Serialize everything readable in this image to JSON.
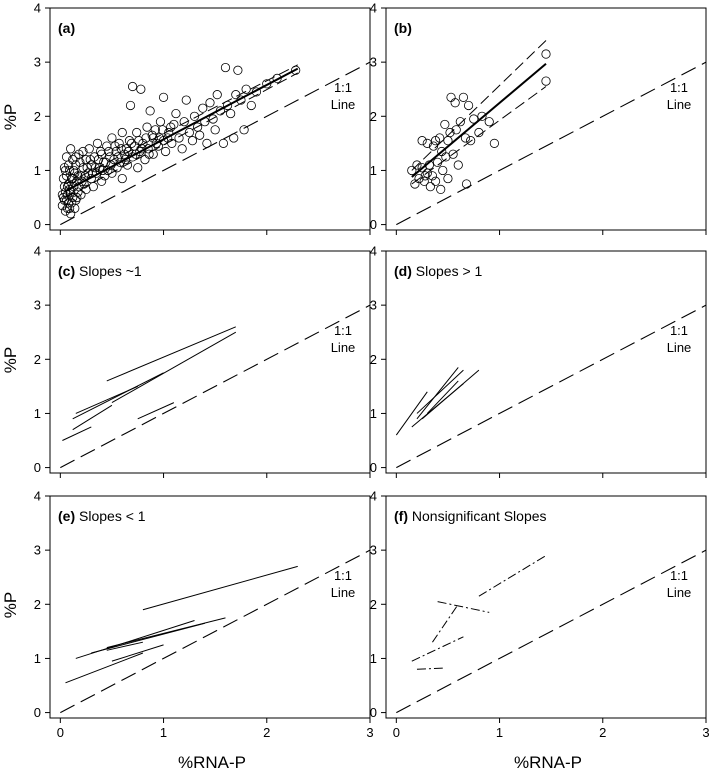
{
  "figure": {
    "ylabel": "%P",
    "xlabel": "%RNA-P",
    "ref_line_label_1": "1:1",
    "ref_line_label_2": "Line"
  },
  "chart_data": [
    {
      "type": "scatter",
      "panel": "a",
      "title": "(a)",
      "xlim": [
        -0.1,
        3
      ],
      "ylim": [
        -0.1,
        4
      ],
      "xticks": [
        0,
        1,
        2,
        3
      ],
      "yticks": [
        0,
        1,
        2,
        3,
        4
      ],
      "reference_line": {
        "x": [
          0,
          3
        ],
        "y": [
          0,
          3
        ]
      },
      "fit": {
        "x": [
          0.05,
          2.3
        ],
        "y": [
          0.62,
          2.88
        ]
      },
      "ci_upper": {
        "x": [
          0.05,
          2.3
        ],
        "y": [
          0.75,
          2.95
        ]
      },
      "ci_lower": {
        "x": [
          0.05,
          2.3
        ],
        "y": [
          0.5,
          2.8
        ]
      },
      "points": [
        [
          0.02,
          0.35
        ],
        [
          0.03,
          0.5
        ],
        [
          0.04,
          0.7
        ],
        [
          0.05,
          0.25
        ],
        [
          0.05,
          0.6
        ],
        [
          0.06,
          0.45
        ],
        [
          0.06,
          0.9
        ],
        [
          0.07,
          0.55
        ],
        [
          0.07,
          0.3
        ],
        [
          0.08,
          0.75
        ],
        [
          0.08,
          0.4
        ],
        [
          0.09,
          1.0
        ],
        [
          0.1,
          0.6
        ],
        [
          0.1,
          0.2
        ],
        [
          0.11,
          0.85
        ],
        [
          0.12,
          0.5
        ],
        [
          0.12,
          1.2
        ],
        [
          0.13,
          0.7
        ],
        [
          0.14,
          0.95
        ],
        [
          0.15,
          0.45
        ],
        [
          0.15,
          1.1
        ],
        [
          0.16,
          0.8
        ],
        [
          0.17,
          0.6
        ],
        [
          0.18,
          1.3
        ],
        [
          0.2,
          0.9
        ],
        [
          0.2,
          0.55
        ],
        [
          0.22,
          1.05
        ],
        [
          0.23,
          0.75
        ],
        [
          0.25,
          1.2
        ],
        [
          0.25,
          0.65
        ],
        [
          0.27,
          0.95
        ],
        [
          0.28,
          1.4
        ],
        [
          0.3,
          0.85
        ],
        [
          0.3,
          1.1
        ],
        [
          0.32,
          0.7
        ],
        [
          0.33,
          1.25
        ],
        [
          0.35,
          0.95
        ],
        [
          0.36,
          1.5
        ],
        [
          0.38,
          1.05
        ],
        [
          0.4,
          0.8
        ],
        [
          0.4,
          1.3
        ],
        [
          0.42,
          1.15
        ],
        [
          0.43,
          0.9
        ],
        [
          0.45,
          1.45
        ],
        [
          0.46,
          1.0
        ],
        [
          0.48,
          1.25
        ],
        [
          0.5,
          1.6
        ],
        [
          0.5,
          0.95
        ],
        [
          0.52,
          1.2
        ],
        [
          0.54,
          1.35
        ],
        [
          0.55,
          1.05
        ],
        [
          0.57,
          1.5
        ],
        [
          0.58,
          1.15
        ],
        [
          0.6,
          1.7
        ],
        [
          0.6,
          0.85
        ],
        [
          0.62,
          1.3
        ],
        [
          0.64,
          1.4
        ],
        [
          0.65,
          1.1
        ],
        [
          0.67,
          1.55
        ],
        [
          0.68,
          2.2
        ],
        [
          0.7,
          1.25
        ],
        [
          0.7,
          2.55
        ],
        [
          0.72,
          1.45
        ],
        [
          0.74,
          1.7
        ],
        [
          0.75,
          1.05
        ],
        [
          0.77,
          1.35
        ],
        [
          0.78,
          2.5
        ],
        [
          0.8,
          1.5
        ],
        [
          0.82,
          1.2
        ],
        [
          0.84,
          1.8
        ],
        [
          0.85,
          1.4
        ],
        [
          0.87,
          2.1
        ],
        [
          0.9,
          1.6
        ],
        [
          0.9,
          1.3
        ],
        [
          0.92,
          1.75
        ],
        [
          0.95,
          1.45
        ],
        [
          0.97,
          1.9
        ],
        [
          1.0,
          1.55
        ],
        [
          1.0,
          2.35
        ],
        [
          1.02,
          1.35
        ],
        [
          1.05,
          1.7
        ],
        [
          1.08,
          1.5
        ],
        [
          1.1,
          1.85
        ],
        [
          1.12,
          2.05
        ],
        [
          1.15,
          1.6
        ],
        [
          1.18,
          1.4
        ],
        [
          1.2,
          1.9
        ],
        [
          1.22,
          2.3
        ],
        [
          1.25,
          1.7
        ],
        [
          1.28,
          1.55
        ],
        [
          1.3,
          2.0
        ],
        [
          1.33,
          1.8
        ],
        [
          1.35,
          1.65
        ],
        [
          1.38,
          2.15
        ],
        [
          1.4,
          1.9
        ],
        [
          1.42,
          1.5
        ],
        [
          1.45,
          2.25
        ],
        [
          1.48,
          1.95
        ],
        [
          1.5,
          1.75
        ],
        [
          1.52,
          2.4
        ],
        [
          1.55,
          2.1
        ],
        [
          1.58,
          1.5
        ],
        [
          1.6,
          2.9
        ],
        [
          1.62,
          2.2
        ],
        [
          1.65,
          2.05
        ],
        [
          1.68,
          1.6
        ],
        [
          1.7,
          2.4
        ],
        [
          1.72,
          2.85
        ],
        [
          1.75,
          2.3
        ],
        [
          1.78,
          1.75
        ],
        [
          1.8,
          2.5
        ],
        [
          1.85,
          2.2
        ],
        [
          1.9,
          2.45
        ],
        [
          2.0,
          2.6
        ],
        [
          2.1,
          2.7
        ],
        [
          2.28,
          2.85
        ],
        [
          0.03,
          0.85
        ],
        [
          0.04,
          1.05
        ],
        [
          0.06,
          1.25
        ],
        [
          0.08,
          1.1
        ],
        [
          0.09,
          0.3
        ],
        [
          0.11,
          0.4
        ],
        [
          0.13,
          1.0
        ],
        [
          0.14,
          0.3
        ],
        [
          0.16,
          0.5
        ],
        [
          0.18,
          0.7
        ],
        [
          0.19,
          1.15
        ],
        [
          0.21,
          0.8
        ],
        [
          0.24,
          0.9
        ],
        [
          0.26,
          1.05
        ],
        [
          0.29,
          1.2
        ],
        [
          0.31,
          0.95
        ],
        [
          0.34,
          1.05
        ],
        [
          0.37,
          1.2
        ],
        [
          0.39,
          1.35
        ],
        [
          0.41,
          1.0
        ],
        [
          0.44,
          1.15
        ],
        [
          0.47,
          1.35
        ],
        [
          0.49,
          1.1
        ],
        [
          0.53,
          1.45
        ],
        [
          0.56,
          1.25
        ],
        [
          0.59,
          1.4
        ],
        [
          0.63,
          1.2
        ],
        [
          0.66,
          1.35
        ],
        [
          0.69,
          1.5
        ],
        [
          0.73,
          1.3
        ],
        [
          0.76,
          1.55
        ],
        [
          0.79,
          1.4
        ],
        [
          0.83,
          1.6
        ],
        [
          0.86,
          1.3
        ],
        [
          0.89,
          1.65
        ],
        [
          0.93,
          1.5
        ],
        [
          0.96,
          1.6
        ],
        [
          0.99,
          1.75
        ],
        [
          1.04,
          1.6
        ],
        [
          1.07,
          1.8
        ],
        [
          0.1,
          1.4
        ],
        [
          0.15,
          1.25
        ],
        [
          0.22,
          1.35
        ],
        [
          0.05,
          1.0
        ],
        [
          0.07,
          0.7
        ],
        [
          0.09,
          0.65
        ],
        [
          0.12,
          0.85
        ],
        [
          0.17,
          0.9
        ],
        [
          0.02,
          0.55
        ],
        [
          0.04,
          0.45
        ]
      ]
    },
    {
      "type": "scatter",
      "panel": "b",
      "title": "(b)",
      "xlim": [
        -0.1,
        3
      ],
      "ylim": [
        -0.1,
        4
      ],
      "xticks": [
        0,
        1,
        2,
        3
      ],
      "yticks": [
        0,
        1,
        2,
        3,
        4
      ],
      "reference_line": {
        "x": [
          0,
          3
        ],
        "y": [
          0,
          3
        ]
      },
      "fit": {
        "x": [
          0.15,
          1.45
        ],
        "y": [
          0.88,
          2.97
        ]
      },
      "ci_upper": {
        "x": [
          0.15,
          1.45
        ],
        "y": [
          1.0,
          3.4
        ]
      },
      "ci_lower": {
        "x": [
          0.15,
          1.45
        ],
        "y": [
          0.75,
          2.55
        ]
      },
      "points": [
        [
          0.15,
          1.0
        ],
        [
          0.18,
          0.75
        ],
        [
          0.2,
          1.1
        ],
        [
          0.22,
          0.85
        ],
        [
          0.25,
          1.05
        ],
        [
          0.25,
          1.55
        ],
        [
          0.27,
          0.8
        ],
        [
          0.3,
          0.95
        ],
        [
          0.3,
          1.5
        ],
        [
          0.32,
          1.1
        ],
        [
          0.33,
          0.7
        ],
        [
          0.35,
          0.9
        ],
        [
          0.36,
          1.45
        ],
        [
          0.38,
          0.8
        ],
        [
          0.4,
          1.15
        ],
        [
          0.42,
          1.6
        ],
        [
          0.43,
          0.65
        ],
        [
          0.45,
          1.0
        ],
        [
          0.47,
          1.85
        ],
        [
          0.48,
          1.25
        ],
        [
          0.5,
          1.55
        ],
        [
          0.5,
          0.85
        ],
        [
          0.52,
          1.7
        ],
        [
          0.53,
          2.35
        ],
        [
          0.55,
          1.3
        ],
        [
          0.57,
          2.25
        ],
        [
          0.58,
          1.75
        ],
        [
          0.6,
          1.1
        ],
        [
          0.62,
          1.9
        ],
        [
          0.65,
          2.35
        ],
        [
          0.67,
          1.6
        ],
        [
          0.68,
          0.75
        ],
        [
          0.7,
          2.2
        ],
        [
          0.72,
          1.55
        ],
        [
          0.75,
          1.95
        ],
        [
          0.8,
          1.7
        ],
        [
          0.83,
          2.0
        ],
        [
          0.9,
          1.9
        ],
        [
          0.95,
          1.5
        ],
        [
          1.45,
          3.15
        ],
        [
          1.45,
          2.65
        ],
        [
          0.44,
          1.35
        ],
        [
          0.38,
          1.55
        ],
        [
          0.28,
          0.9
        ]
      ]
    },
    {
      "type": "line",
      "panel": "c",
      "title": "(c) Slopes ~1",
      "xlim": [
        -0.1,
        3
      ],
      "ylim": [
        -0.1,
        4
      ],
      "xticks": [
        0,
        1,
        2,
        3
      ],
      "yticks": [
        0,
        1,
        2,
        3,
        4
      ],
      "reference_line": {
        "x": [
          0,
          3
        ],
        "y": [
          0,
          3
        ]
      },
      "segments": [
        {
          "x": [
            0.45,
            1.7
          ],
          "y": [
            1.6,
            2.6
          ]
        },
        {
          "x": [
            0.5,
            1.7
          ],
          "y": [
            1.2,
            2.5
          ]
        },
        {
          "x": [
            0.12,
            1.0
          ],
          "y": [
            0.9,
            1.75
          ]
        },
        {
          "x": [
            0.15,
            0.75
          ],
          "y": [
            1.0,
            1.5
          ]
        },
        {
          "x": [
            0.12,
            0.5
          ],
          "y": [
            0.7,
            1.15
          ]
        },
        {
          "x": [
            0.02,
            0.3
          ],
          "y": [
            0.5,
            0.75
          ]
        },
        {
          "x": [
            0.75,
            1.1
          ],
          "y": [
            0.9,
            1.2
          ]
        }
      ]
    },
    {
      "type": "line",
      "panel": "d",
      "title": "(d) Slopes > 1",
      "xlim": [
        -0.1,
        3
      ],
      "ylim": [
        -0.1,
        4
      ],
      "xticks": [
        0,
        1,
        2,
        3
      ],
      "yticks": [
        0,
        1,
        2,
        3,
        4
      ],
      "reference_line": {
        "x": [
          0,
          3
        ],
        "y": [
          0,
          3
        ]
      },
      "segments": [
        {
          "x": [
            0.0,
            0.3
          ],
          "y": [
            0.6,
            1.4
          ]
        },
        {
          "x": [
            0.2,
            0.6
          ],
          "y": [
            0.9,
            1.85
          ]
        },
        {
          "x": [
            0.25,
            0.8
          ],
          "y": [
            0.9,
            1.8
          ]
        },
        {
          "x": [
            0.15,
            0.65
          ],
          "y": [
            0.75,
            1.55
          ]
        },
        {
          "x": [
            0.3,
            0.6
          ],
          "y": [
            1.0,
            1.6
          ]
        },
        {
          "x": [
            0.2,
            0.65
          ],
          "y": [
            1.0,
            1.8
          ]
        }
      ]
    },
    {
      "type": "line",
      "panel": "e",
      "title": "(e) Slopes < 1",
      "xlim": [
        -0.1,
        3
      ],
      "ylim": [
        -0.1,
        4
      ],
      "xticks": [
        0,
        1,
        2,
        3
      ],
      "yticks": [
        0,
        1,
        2,
        3,
        4
      ],
      "reference_line": {
        "x": [
          0,
          3
        ],
        "y": [
          0,
          3
        ]
      },
      "segments": [
        {
          "x": [
            0.8,
            2.3
          ],
          "y": [
            1.9,
            2.7
          ]
        },
        {
          "x": [
            0.15,
            1.3
          ],
          "y": [
            1.0,
            1.7
          ]
        },
        {
          "x": [
            0.3,
            1.4
          ],
          "y": [
            1.1,
            1.65
          ]
        },
        {
          "x": [
            0.45,
            1.6
          ],
          "y": [
            1.2,
            1.75
          ]
        },
        {
          "x": [
            0.45,
            0.8
          ],
          "y": [
            1.15,
            1.3
          ]
        },
        {
          "x": [
            0.05,
            0.8
          ],
          "y": [
            0.55,
            1.1
          ]
        },
        {
          "x": [
            0.5,
            1.0
          ],
          "y": [
            0.95,
            1.25
          ]
        }
      ]
    },
    {
      "type": "line",
      "panel": "f",
      "title": "(f) Nonsignificant Slopes",
      "xlim": [
        -0.1,
        3
      ],
      "ylim": [
        -0.1,
        4
      ],
      "xticks": [
        0,
        1,
        2,
        3
      ],
      "yticks": [
        0,
        1,
        2,
        3,
        4
      ],
      "reference_line": {
        "x": [
          0,
          3
        ],
        "y": [
          0,
          3
        ]
      },
      "segments": [
        {
          "x": [
            0.8,
            1.45
          ],
          "y": [
            2.15,
            2.9
          ]
        },
        {
          "x": [
            0.4,
            0.9
          ],
          "y": [
            2.05,
            1.85
          ]
        },
        {
          "x": [
            0.35,
            0.6
          ],
          "y": [
            1.3,
            2.0
          ]
        },
        {
          "x": [
            0.15,
            0.65
          ],
          "y": [
            0.95,
            1.4
          ]
        },
        {
          "x": [
            0.2,
            0.45
          ],
          "y": [
            0.8,
            0.82
          ]
        }
      ]
    }
  ]
}
